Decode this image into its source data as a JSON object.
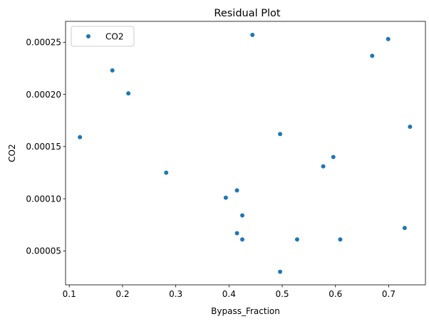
{
  "chart_data": {
    "type": "scatter",
    "title": "Residual Plot",
    "xlabel": "Bypass_Fraction",
    "ylabel": "CO2",
    "xlim": [
      0.093,
      0.769
    ],
    "ylim": [
      1.75e-05,
      0.00027
    ],
    "xticks": [
      0.1,
      0.2,
      0.3,
      0.4,
      0.5,
      0.6,
      0.7
    ],
    "xtick_labels": [
      "0.1",
      "0.2",
      "0.3",
      "0.4",
      "0.5",
      "0.6",
      "0.7"
    ],
    "yticks": [
      5e-05,
      0.0001,
      0.00015,
      0.0002,
      0.00025
    ],
    "ytick_labels": [
      "0.00005",
      "0.00010",
      "0.00015",
      "0.00020",
      "0.00025"
    ],
    "grid": false,
    "legend": {
      "position": "upper-left",
      "entries": [
        "CO2"
      ]
    },
    "color": "#1f77b4",
    "series": [
      {
        "name": "CO2",
        "points": [
          [
            0.12,
            0.000159
          ],
          [
            0.181,
            0.000223
          ],
          [
            0.211,
            0.000201
          ],
          [
            0.282,
            0.000125
          ],
          [
            0.394,
            0.000101
          ],
          [
            0.415,
            0.000108
          ],
          [
            0.415,
            6.7e-05
          ],
          [
            0.425,
            8.4e-05
          ],
          [
            0.425,
            6.1e-05
          ],
          [
            0.444,
            0.000257
          ],
          [
            0.496,
            0.000162
          ],
          [
            0.496,
            3e-05
          ],
          [
            0.528,
            6.1e-05
          ],
          [
            0.577,
            0.000131
          ],
          [
            0.596,
            0.00014
          ],
          [
            0.609,
            6.1e-05
          ],
          [
            0.669,
            0.000237
          ],
          [
            0.699,
            0.000253
          ],
          [
            0.73,
            7.2e-05
          ],
          [
            0.74,
            0.000169
          ]
        ]
      }
    ]
  }
}
